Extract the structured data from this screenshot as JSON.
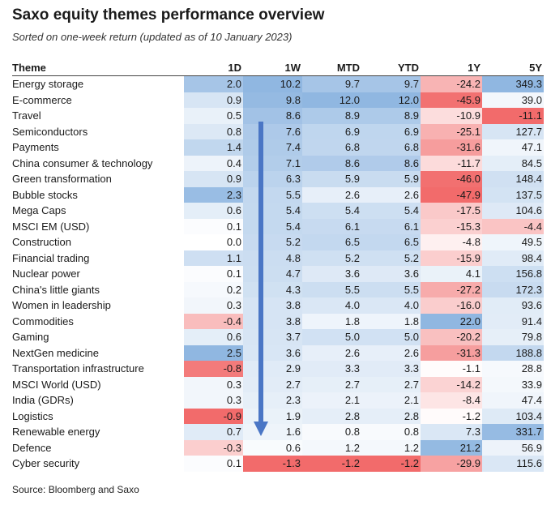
{
  "title": "Saxo equity themes performance overview",
  "subtitle": "Sorted on one-week return (updated as of 10 January 2023)",
  "source": "Source: Bloomberg and Saxo",
  "colors": {
    "positive": "#a8c7e8",
    "negative": "#f26b6b",
    "header_rule": "#444444",
    "arrow": "#4a76c5"
  },
  "chart_data": {
    "type": "table",
    "columns": [
      "Theme",
      "1D",
      "1W",
      "MTD",
      "YTD",
      "1Y",
      "5Y"
    ],
    "rows": [
      {
        "theme": "Energy storage",
        "values": [
          "2.0",
          "10.2",
          "9.7",
          "9.7",
          "-24.2",
          "349.3"
        ]
      },
      {
        "theme": "E-commerce",
        "values": [
          "0.9",
          "9.8",
          "12.0",
          "12.0",
          "-45.9",
          "39.0"
        ]
      },
      {
        "theme": "Travel",
        "values": [
          "0.5",
          "8.6",
          "8.9",
          "8.9",
          "-10.9",
          "-11.1"
        ]
      },
      {
        "theme": "Semiconductors",
        "values": [
          "0.8",
          "7.6",
          "6.9",
          "6.9",
          "-25.1",
          "127.7"
        ]
      },
      {
        "theme": "Payments",
        "values": [
          "1.4",
          "7.4",
          "6.8",
          "6.8",
          "-31.6",
          "47.1"
        ]
      },
      {
        "theme": "China consumer & technology",
        "values": [
          "0.4",
          "7.1",
          "8.6",
          "8.6",
          "-11.7",
          "84.5"
        ]
      },
      {
        "theme": "Green transformation",
        "values": [
          "0.9",
          "6.3",
          "5.9",
          "5.9",
          "-46.0",
          "148.4"
        ]
      },
      {
        "theme": "Bubble stocks",
        "values": [
          "2.3",
          "5.5",
          "2.6",
          "2.6",
          "-47.9",
          "137.5"
        ]
      },
      {
        "theme": "Mega Caps",
        "values": [
          "0.6",
          "5.4",
          "5.4",
          "5.4",
          "-17.5",
          "104.6"
        ]
      },
      {
        "theme": "MSCI EM (USD)",
        "values": [
          "0.1",
          "5.4",
          "6.1",
          "6.1",
          "-15.3",
          "-4.4"
        ]
      },
      {
        "theme": "Construction",
        "values": [
          "0.0",
          "5.2",
          "6.5",
          "6.5",
          "-4.8",
          "49.5"
        ]
      },
      {
        "theme": "Financial trading",
        "values": [
          "1.1",
          "4.8",
          "5.2",
          "5.2",
          "-15.9",
          "98.4"
        ]
      },
      {
        "theme": "Nuclear power",
        "values": [
          "0.1",
          "4.7",
          "3.6",
          "3.6",
          "4.1",
          "156.8"
        ]
      },
      {
        "theme": "China's little giants",
        "values": [
          "0.2",
          "4.3",
          "5.5",
          "5.5",
          "-27.2",
          "172.3"
        ]
      },
      {
        "theme": "Women in leadership",
        "values": [
          "0.3",
          "3.8",
          "4.0",
          "4.0",
          "-16.0",
          "93.6"
        ]
      },
      {
        "theme": "Commodities",
        "values": [
          "-0.4",
          "3.8",
          "1.8",
          "1.8",
          "22.0",
          "91.4"
        ]
      },
      {
        "theme": "Gaming",
        "values": [
          "0.6",
          "3.7",
          "5.0",
          "5.0",
          "-20.2",
          "79.8"
        ]
      },
      {
        "theme": "NextGen medicine",
        "values": [
          "2.5",
          "3.6",
          "2.6",
          "2.6",
          "-31.3",
          "188.8"
        ]
      },
      {
        "theme": "Transportation infrastructure",
        "values": [
          "-0.8",
          "2.9",
          "3.3",
          "3.3",
          "-1.1",
          "28.8"
        ]
      },
      {
        "theme": "MSCI World (USD)",
        "values": [
          "0.3",
          "2.7",
          "2.7",
          "2.7",
          "-14.2",
          "33.9"
        ]
      },
      {
        "theme": "India (GDRs)",
        "values": [
          "0.3",
          "2.3",
          "2.1",
          "2.1",
          "-8.4",
          "47.4"
        ]
      },
      {
        "theme": "Logistics",
        "values": [
          "-0.9",
          "1.9",
          "2.8",
          "2.8",
          "-1.2",
          "103.4"
        ]
      },
      {
        "theme": "Renewable energy",
        "values": [
          "0.7",
          "1.6",
          "0.8",
          "0.8",
          "7.3",
          "331.7"
        ]
      },
      {
        "theme": "Defence",
        "values": [
          "-0.3",
          "0.6",
          "1.2",
          "1.2",
          "21.2",
          "56.9"
        ]
      },
      {
        "theme": "Cyber security",
        "values": [
          "0.1",
          "-1.3",
          "-1.2",
          "-1.2",
          "-29.9",
          "115.6"
        ]
      }
    ]
  }
}
